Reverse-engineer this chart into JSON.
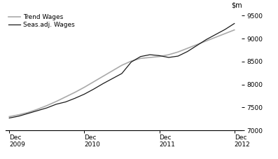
{
  "ylim": [
    7000,
    9600
  ],
  "yticks": [
    7000,
    7500,
    8000,
    8500,
    9000,
    9500
  ],
  "xtick_labels": [
    "Dec\n2009",
    "Dec\n2010",
    "Dec\n2011",
    "Dec\n2012"
  ],
  "xtick_positions": [
    0,
    4,
    8,
    12
  ],
  "seas_adj_color": "#1a1a1a",
  "trend_color": "#aaaaaa",
  "legend_seas": "Seas.adj. Wages",
  "legend_trend": "Trend Wages",
  "seas_adj_x": [
    0,
    0.5,
    1,
    1.5,
    2,
    2.5,
    3,
    3.5,
    4,
    4.5,
    5,
    5.5,
    6,
    6.5,
    7,
    7.5,
    8,
    8.5,
    9,
    9.5,
    10,
    10.5,
    11,
    11.5,
    12
  ],
  "seas_adj_y": [
    7270,
    7310,
    7370,
    7430,
    7490,
    7570,
    7620,
    7700,
    7790,
    7900,
    8020,
    8130,
    8240,
    8490,
    8610,
    8650,
    8630,
    8590,
    8620,
    8720,
    8850,
    8980,
    9090,
    9200,
    9330
  ],
  "trend_x": [
    0,
    0.5,
    1,
    1.5,
    2,
    2.5,
    3,
    3.5,
    4,
    4.5,
    5,
    5.5,
    6,
    6.5,
    7,
    7.5,
    8,
    8.5,
    9,
    9.5,
    10,
    10.5,
    11,
    11.5,
    12
  ],
  "trend_y": [
    7300,
    7340,
    7390,
    7460,
    7540,
    7630,
    7730,
    7830,
    7940,
    8060,
    8180,
    8300,
    8420,
    8510,
    8570,
    8590,
    8610,
    8650,
    8710,
    8790,
    8870,
    8950,
    9030,
    9110,
    9190
  ]
}
